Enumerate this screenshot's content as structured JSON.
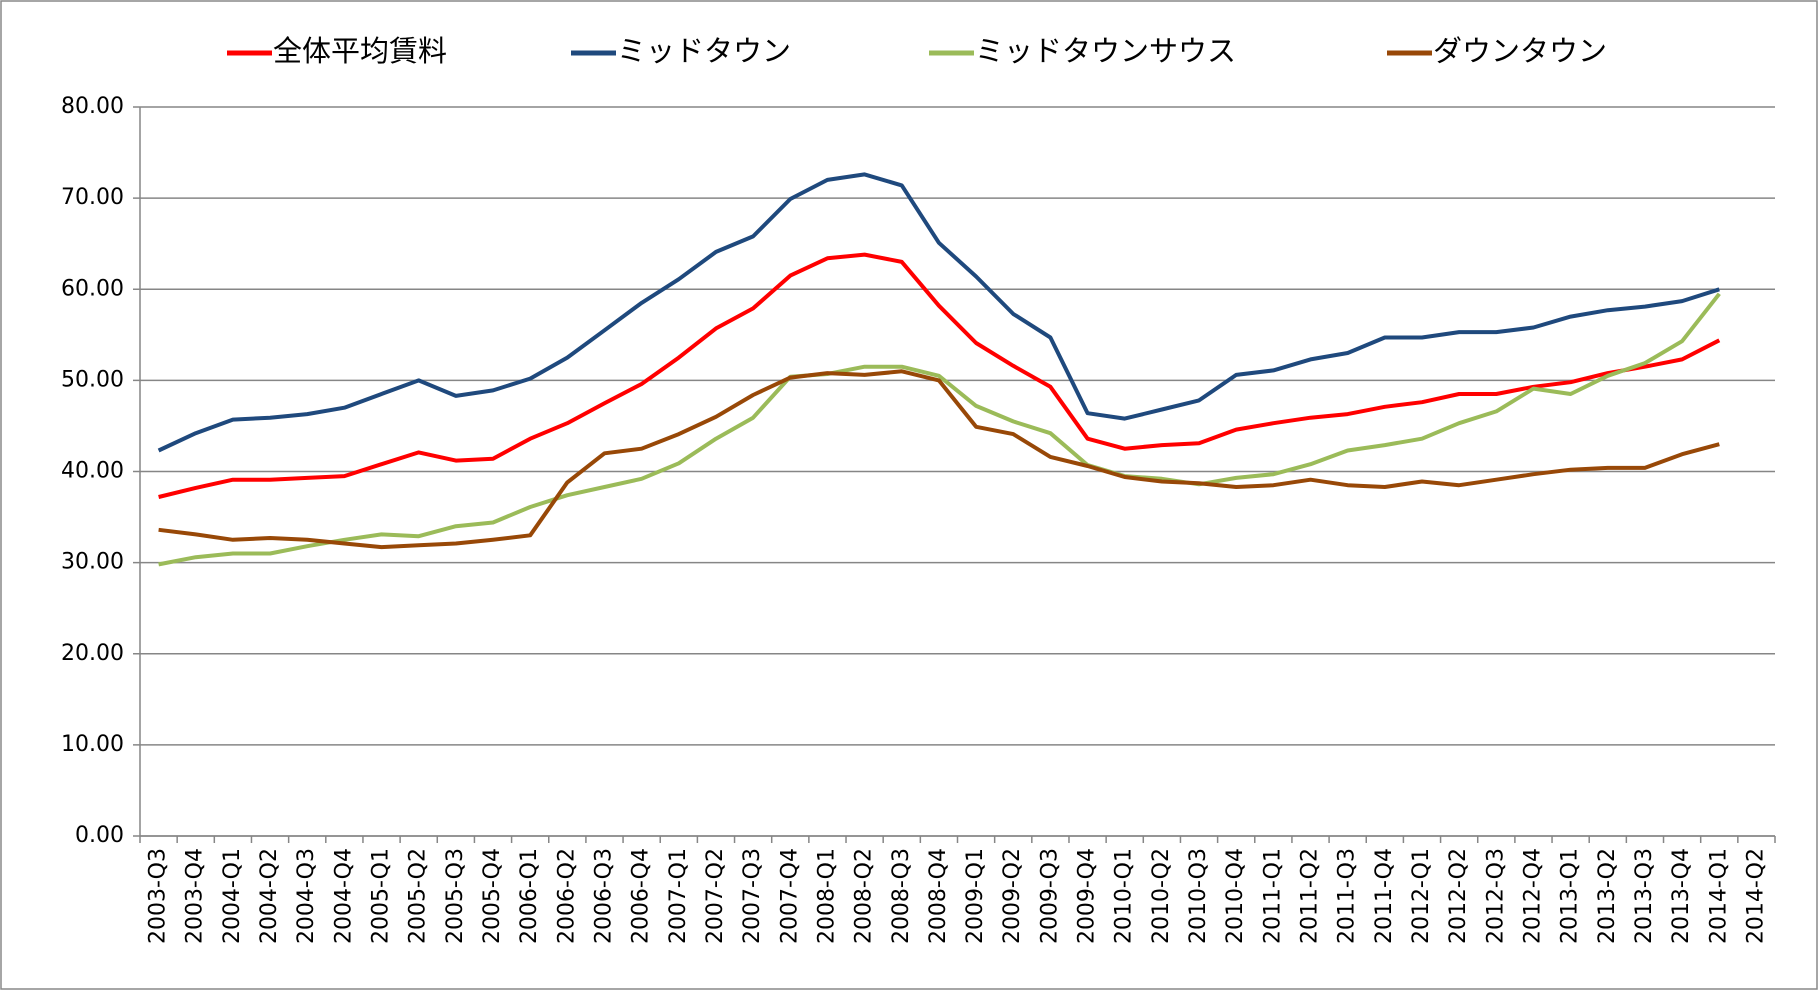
{
  "chart_data": {
    "type": "line",
    "categories": [
      "2003-Q3",
      "2003-Q4",
      "2004-Q1",
      "2004-Q2",
      "2004-Q3",
      "2004-Q4",
      "2005-Q1",
      "2005-Q2",
      "2005-Q3",
      "2005-Q4",
      "2006-Q1",
      "2006-Q2",
      "2006-Q3",
      "2006-Q4",
      "2007-Q1",
      "2007-Q2",
      "2007-Q3",
      "2007-Q4",
      "2008-Q1",
      "2008-Q2",
      "2008-Q3",
      "2008-Q4",
      "2009-Q1",
      "2009-Q2",
      "2009-Q3",
      "2009-Q4",
      "2010-Q1",
      "2010-Q2",
      "2010-Q3",
      "2010-Q4",
      "2011-Q1",
      "2011-Q2",
      "2011-Q3",
      "2011-Q4",
      "2012-Q1",
      "2012-Q2",
      "2012-Q3",
      "2012-Q4",
      "2013-Q1",
      "2013-Q2",
      "2013-Q3",
      "2013-Q4",
      "2014-Q1",
      "2014-Q2"
    ],
    "series": [
      {
        "name": "全体平均賃料",
        "color": "#ff0000",
        "values": [
          37.2,
          38.2,
          39.1,
          39.1,
          39.3,
          39.5,
          40.8,
          42.1,
          41.2,
          41.4,
          43.6,
          45.3,
          47.5,
          49.6,
          52.5,
          55.7,
          57.9,
          61.5,
          63.4,
          63.8,
          63.0,
          58.2,
          54.1,
          51.6,
          49.3,
          43.6,
          42.5,
          42.9,
          43.1,
          44.6,
          45.3,
          45.9,
          46.3,
          47.1,
          47.6,
          48.5,
          48.5,
          49.3,
          49.8,
          50.8,
          51.5,
          52.3,
          54.4,
          null
        ]
      },
      {
        "name": "ミッドタウン",
        "color": "#1f497d",
        "values": [
          42.3,
          44.2,
          45.7,
          45.9,
          46.3,
          47.0,
          48.5,
          50.0,
          48.3,
          48.9,
          50.2,
          52.5,
          55.5,
          58.5,
          61.1,
          64.1,
          65.8,
          69.9,
          72.0,
          72.6,
          71.4,
          65.1,
          61.4,
          57.3,
          54.7,
          46.4,
          45.8,
          46.8,
          47.8,
          50.6,
          51.1,
          52.3,
          53.0,
          54.7,
          54.7,
          55.3,
          55.3,
          55.8,
          57.0,
          57.7,
          58.1,
          58.7,
          60.0,
          null
        ]
      },
      {
        "name": "ミッドタウンサウス",
        "color": "#9bbb59",
        "values": [
          29.8,
          30.6,
          31.0,
          31.0,
          31.8,
          32.5,
          33.1,
          32.9,
          34.0,
          34.4,
          36.1,
          37.4,
          38.3,
          39.2,
          40.9,
          43.6,
          45.9,
          50.4,
          50.7,
          51.5,
          51.5,
          50.5,
          47.2,
          45.5,
          44.2,
          40.7,
          39.5,
          39.2,
          38.6,
          39.3,
          39.7,
          40.8,
          42.3,
          42.9,
          43.6,
          45.3,
          46.6,
          49.1,
          48.5,
          50.5,
          51.9,
          54.3,
          59.5,
          null
        ]
      },
      {
        "name": "ダウンタウン",
        "color": "#984807",
        "values": [
          33.6,
          33.1,
          32.5,
          32.7,
          32.5,
          32.1,
          31.7,
          31.9,
          32.1,
          32.5,
          33.0,
          38.8,
          42.0,
          42.5,
          44.1,
          46.0,
          48.4,
          50.3,
          50.8,
          50.6,
          51.0,
          50.0,
          44.9,
          44.1,
          41.6,
          40.6,
          39.4,
          38.9,
          38.7,
          38.3,
          38.5,
          39.1,
          38.5,
          38.3,
          38.9,
          38.5,
          39.1,
          39.7,
          40.2,
          40.4,
          40.4,
          41.9,
          43.0,
          null
        ]
      }
    ],
    "ylim": [
      0,
      80
    ],
    "yticks": [
      {
        "value": 0,
        "label": "0.00"
      },
      {
        "value": 10,
        "label": "10.00"
      },
      {
        "value": 20,
        "label": "20.00"
      },
      {
        "value": 30,
        "label": "30.00"
      },
      {
        "value": 40,
        "label": "40.00"
      },
      {
        "value": 50,
        "label": "50.00"
      },
      {
        "value": 60,
        "label": "60.00"
      },
      {
        "value": 70,
        "label": "70.00"
      },
      {
        "value": 80,
        "label": "80.00"
      }
    ],
    "grid": true,
    "legend": "top"
  }
}
